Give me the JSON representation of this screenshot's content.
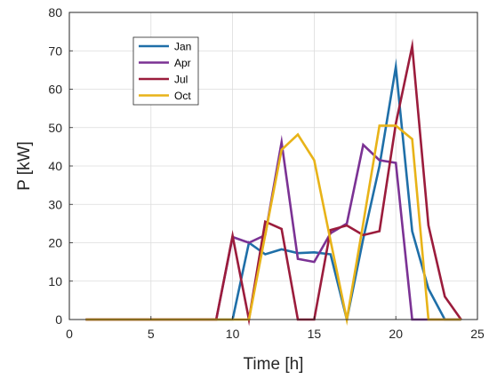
{
  "chart_data": {
    "type": "line",
    "xlabel": "Time [h]",
    "ylabel": "P [kW]",
    "xlim": [
      0,
      25
    ],
    "ylim": [
      0,
      80
    ],
    "xticks": [
      0,
      5,
      10,
      15,
      20,
      25
    ],
    "yticks": [
      0,
      10,
      20,
      30,
      40,
      50,
      60,
      70,
      80
    ],
    "grid": true,
    "legend_position": "top-left (inside)",
    "x": [
      1,
      2,
      3,
      4,
      5,
      6,
      7,
      8,
      9,
      10,
      11,
      12,
      13,
      14,
      15,
      16,
      17,
      18,
      19,
      20,
      21,
      22,
      23,
      24
    ],
    "series": [
      {
        "name": "Jan",
        "color": "#1f6fa8",
        "values": [
          0,
          0,
          0,
          0,
          0,
          0,
          0,
          0,
          0,
          0,
          20,
          17,
          18.3,
          17.3,
          17.5,
          17,
          0,
          21,
          40,
          65.8,
          23,
          8,
          0,
          0
        ]
      },
      {
        "name": "Apr",
        "color": "#7b3294",
        "values": [
          0,
          0,
          0,
          0,
          0,
          0,
          0,
          0,
          0,
          21.5,
          20,
          22,
          46.2,
          15.8,
          15,
          22.5,
          25,
          45.5,
          41.5,
          40.8,
          0,
          0,
          0,
          0
        ]
      },
      {
        "name": "Jul",
        "color": "#9b1c3c",
        "values": [
          0,
          0,
          0,
          0,
          0,
          0,
          0,
          0,
          0,
          21.8,
          0,
          25.5,
          23.6,
          0,
          0,
          23.3,
          24.5,
          22,
          23,
          51,
          71.2,
          24.5,
          6,
          0
        ]
      },
      {
        "name": "Oct",
        "color": "#e8b318",
        "values": [
          0,
          0,
          0,
          0,
          0,
          0,
          0,
          0,
          0,
          0,
          0,
          22,
          44.2,
          48.2,
          41.5,
          20.5,
          0,
          25,
          50.5,
          50.5,
          47,
          0,
          0,
          0
        ]
      }
    ]
  }
}
